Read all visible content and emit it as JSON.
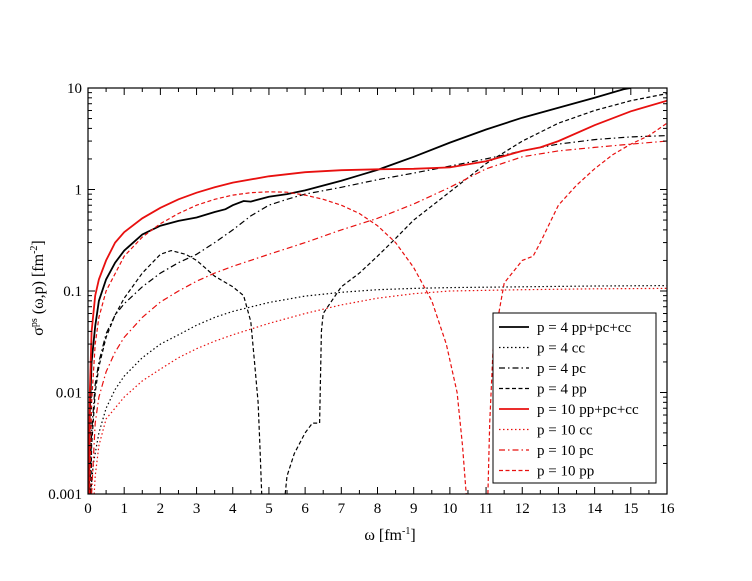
{
  "chart_data": {
    "type": "line",
    "title": "",
    "xlabel": {
      "main": "ω  [fm",
      "sup": "-1",
      "end": "]"
    },
    "ylabel": {
      "main": "σ",
      "sup1": "ps",
      "mid": " (ω,p)  [fm",
      "sup2": "-2",
      "end": "]"
    },
    "xlim": [
      0,
      16
    ],
    "ylim": [
      0.001,
      10
    ],
    "yscale": "log",
    "grid": false,
    "legend_position": "bottom-right",
    "x_ticks": [
      "0",
      "1",
      "2",
      "3",
      "4",
      "5",
      "6",
      "7",
      "8",
      "9",
      "10",
      "11",
      "12",
      "13",
      "14",
      "15",
      "16"
    ],
    "y_ticks": [
      {
        "value": 0.001,
        "label": "0.001"
      },
      {
        "value": 0.01,
        "label": "0.01"
      },
      {
        "value": 0.1,
        "label": "0.1"
      },
      {
        "value": 1,
        "label": "1"
      },
      {
        "value": 10,
        "label": "10"
      }
    ],
    "colors": {
      "black": "#000000",
      "red": "#e8100f"
    },
    "series": [
      {
        "name": "p = 4    pp+pc+cc",
        "color": "#000000",
        "dash": "solid",
        "width": 1.8,
        "points": [
          [
            0.03,
            0.001
          ],
          [
            0.05,
            0.006
          ],
          [
            0.1,
            0.02
          ],
          [
            0.2,
            0.045
          ],
          [
            0.3,
            0.08
          ],
          [
            0.5,
            0.13
          ],
          [
            0.75,
            0.19
          ],
          [
            1,
            0.25
          ],
          [
            1.5,
            0.36
          ],
          [
            2,
            0.44
          ],
          [
            2.5,
            0.49
          ],
          [
            3,
            0.53
          ],
          [
            3.5,
            0.6
          ],
          [
            3.8,
            0.64
          ],
          [
            4,
            0.7
          ],
          [
            4.3,
            0.77
          ],
          [
            4.5,
            0.76
          ],
          [
            5,
            0.85
          ],
          [
            5.5,
            0.9
          ],
          [
            6,
            0.98
          ],
          [
            6.4,
            1.07
          ],
          [
            7,
            1.22
          ],
          [
            7.5,
            1.38
          ],
          [
            8,
            1.56
          ],
          [
            9,
            2.1
          ],
          [
            10,
            2.9
          ],
          [
            11,
            3.9
          ],
          [
            12,
            5.1
          ],
          [
            13,
            6.4
          ],
          [
            14,
            8
          ],
          [
            14.8,
            9.7
          ],
          [
            15,
            10
          ]
        ]
      },
      {
        "name": "p = 4    cc",
        "color": "#000000",
        "dash": "1.5,2.5",
        "width": 1.2,
        "points": [
          [
            0.08,
            0.001
          ],
          [
            0.1,
            0.0013
          ],
          [
            0.15,
            0.002
          ],
          [
            0.3,
            0.004
          ],
          [
            0.5,
            0.007
          ],
          [
            0.75,
            0.0107
          ],
          [
            1,
            0.0145
          ],
          [
            1.5,
            0.022
          ],
          [
            2,
            0.03
          ],
          [
            2.5,
            0.037
          ],
          [
            3,
            0.046
          ],
          [
            3.5,
            0.055
          ],
          [
            4,
            0.063
          ],
          [
            5,
            0.077
          ],
          [
            6,
            0.089
          ],
          [
            7,
            0.097
          ],
          [
            8,
            0.103
          ],
          [
            9,
            0.106
          ],
          [
            10,
            0.108
          ],
          [
            12,
            0.11
          ],
          [
            14,
            0.112
          ],
          [
            16,
            0.113
          ]
        ]
      },
      {
        "name": "p = 4    pc",
        "color": "#000000",
        "dash": "6,3,1.5,3",
        "width": 1.2,
        "points": [
          [
            0.05,
            0.001
          ],
          [
            0.1,
            0.004
          ],
          [
            0.2,
            0.012
          ],
          [
            0.3,
            0.02
          ],
          [
            0.5,
            0.038
          ],
          [
            0.75,
            0.058
          ],
          [
            1,
            0.075
          ],
          [
            1.5,
            0.11
          ],
          [
            2,
            0.15
          ],
          [
            2.5,
            0.19
          ],
          [
            3,
            0.23
          ],
          [
            3.5,
            0.3
          ],
          [
            4,
            0.4
          ],
          [
            4.5,
            0.55
          ],
          [
            5,
            0.7
          ],
          [
            5.5,
            0.8
          ],
          [
            6,
            0.9
          ],
          [
            7,
            1.05
          ],
          [
            8,
            1.25
          ],
          [
            9,
            1.45
          ],
          [
            10,
            1.7
          ],
          [
            11,
            2
          ],
          [
            12,
            2.4
          ],
          [
            13,
            2.8
          ],
          [
            14,
            3.1
          ],
          [
            15,
            3.3
          ],
          [
            16,
            3.4
          ]
        ]
      },
      {
        "name": "p = 4    pp",
        "color": "#000000",
        "dash": "4,2.5",
        "width": 1.2,
        "points": [
          [
            0.08,
            0.001
          ],
          [
            0.1,
            0.003
          ],
          [
            0.2,
            0.01
          ],
          [
            0.3,
            0.018
          ],
          [
            0.5,
            0.035
          ],
          [
            0.75,
            0.058
          ],
          [
            1,
            0.085
          ],
          [
            1.5,
            0.15
          ],
          [
            2,
            0.23
          ],
          [
            2.3,
            0.25
          ],
          [
            2.7,
            0.23
          ],
          [
            3,
            0.2
          ],
          [
            3.5,
            0.14
          ],
          [
            4,
            0.11
          ],
          [
            4.3,
            0.09
          ],
          [
            4.5,
            0.05
          ],
          [
            4.6,
            0.02
          ],
          [
            4.7,
            0.008
          ],
          [
            4.75,
            0.003
          ],
          [
            4.8,
            0.001
          ]
        ]
      },
      {
        "name": "",
        "color": "#000000",
        "dash": "4,2.5",
        "width": 1.2,
        "points": [
          [
            5.45,
            0.001
          ],
          [
            5.5,
            0.0015
          ],
          [
            5.7,
            0.0025
          ],
          [
            6,
            0.004
          ],
          [
            6.2,
            0.005
          ],
          [
            6.4,
            0.005
          ],
          [
            6.45,
            0.04
          ],
          [
            6.5,
            0.06
          ],
          [
            7,
            0.11
          ],
          [
            7.5,
            0.15
          ],
          [
            8,
            0.22
          ],
          [
            8.5,
            0.33
          ],
          [
            9,
            0.5
          ],
          [
            10,
            0.95
          ],
          [
            11,
            1.8
          ],
          [
            12,
            3
          ],
          [
            13,
            4.5
          ],
          [
            14,
            6
          ],
          [
            15,
            7.5
          ],
          [
            16,
            8.8
          ]
        ]
      },
      {
        "name": "p = 10  pp+pc+cc",
        "color": "#e8100f",
        "dash": "solid",
        "width": 1.8,
        "points": [
          [
            0.02,
            0.001
          ],
          [
            0.05,
            0.01
          ],
          [
            0.1,
            0.04
          ],
          [
            0.2,
            0.09
          ],
          [
            0.3,
            0.13
          ],
          [
            0.5,
            0.2
          ],
          [
            0.75,
            0.3
          ],
          [
            1,
            0.38
          ],
          [
            1.5,
            0.52
          ],
          [
            2,
            0.66
          ],
          [
            2.5,
            0.8
          ],
          [
            3,
            0.93
          ],
          [
            3.5,
            1.05
          ],
          [
            4,
            1.17
          ],
          [
            5,
            1.35
          ],
          [
            6,
            1.48
          ],
          [
            7,
            1.55
          ],
          [
            8,
            1.58
          ],
          [
            9,
            1.6
          ],
          [
            10,
            1.65
          ],
          [
            11,
            1.9
          ],
          [
            12,
            2.4
          ],
          [
            12.5,
            2.6
          ],
          [
            13,
            3
          ],
          [
            14,
            4.3
          ],
          [
            15,
            5.9
          ],
          [
            16,
            7.5
          ]
        ]
      },
      {
        "name": "p = 10  cc",
        "color": "#e8100f",
        "dash": "1.5,2.5",
        "width": 1.2,
        "points": [
          [
            0.17,
            0.001
          ],
          [
            0.2,
            0.0015
          ],
          [
            0.3,
            0.003
          ],
          [
            0.5,
            0.0055
          ],
          [
            1,
            0.009
          ],
          [
            1.5,
            0.013
          ],
          [
            2,
            0.017
          ],
          [
            2.5,
            0.022
          ],
          [
            3,
            0.027
          ],
          [
            3.5,
            0.032
          ],
          [
            4,
            0.037
          ],
          [
            5,
            0.048
          ],
          [
            6,
            0.06
          ],
          [
            7,
            0.073
          ],
          [
            8,
            0.085
          ],
          [
            9,
            0.094
          ],
          [
            10,
            0.1
          ],
          [
            12,
            0.103
          ],
          [
            14,
            0.105
          ],
          [
            16,
            0.106
          ]
        ]
      },
      {
        "name": "p = 10  pc",
        "color": "#e8100f",
        "dash": "6,3,1.5,3",
        "width": 1.2,
        "points": [
          [
            0.1,
            0.001
          ],
          [
            0.2,
            0.005
          ],
          [
            0.3,
            0.009
          ],
          [
            0.5,
            0.016
          ],
          [
            0.75,
            0.025
          ],
          [
            1,
            0.035
          ],
          [
            1.5,
            0.055
          ],
          [
            2,
            0.078
          ],
          [
            2.5,
            0.1
          ],
          [
            3,
            0.125
          ],
          [
            3.5,
            0.15
          ],
          [
            4,
            0.175
          ],
          [
            5,
            0.23
          ],
          [
            6,
            0.3
          ],
          [
            7,
            0.4
          ],
          [
            8,
            0.52
          ],
          [
            9,
            0.72
          ],
          [
            10,
            1.05
          ],
          [
            11,
            1.6
          ],
          [
            12,
            2.1
          ],
          [
            13,
            2.4
          ],
          [
            14,
            2.6
          ],
          [
            15,
            2.8
          ],
          [
            16,
            3
          ]
        ]
      },
      {
        "name": "p = 10  pp",
        "color": "#e8100f",
        "dash": "4,2.5",
        "width": 1.2,
        "points": [
          [
            0.05,
            0.001
          ],
          [
            0.1,
            0.008
          ],
          [
            0.2,
            0.03
          ],
          [
            0.3,
            0.055
          ],
          [
            0.5,
            0.1
          ],
          [
            1,
            0.22
          ],
          [
            1.5,
            0.34
          ],
          [
            2,
            0.46
          ],
          [
            2.5,
            0.58
          ],
          [
            3,
            0.7
          ],
          [
            3.5,
            0.8
          ],
          [
            4,
            0.88
          ],
          [
            4.5,
            0.93
          ],
          [
            5,
            0.95
          ],
          [
            5.5,
            0.94
          ],
          [
            6,
            0.88
          ],
          [
            6.5,
            0.8
          ],
          [
            7,
            0.7
          ],
          [
            7.5,
            0.58
          ],
          [
            8,
            0.44
          ],
          [
            8.5,
            0.3
          ],
          [
            9,
            0.17
          ],
          [
            9.5,
            0.08
          ],
          [
            9.9,
            0.03
          ],
          [
            10.2,
            0.01
          ],
          [
            10.35,
            0.003
          ],
          [
            10.45,
            0.001
          ]
        ]
      },
      {
        "name": "",
        "color": "#e8100f",
        "dash": "4,2.5",
        "width": 1.2,
        "points": [
          [
            11.05,
            0.001
          ],
          [
            11.1,
            0.005
          ],
          [
            11.2,
            0.03
          ],
          [
            11.5,
            0.12
          ],
          [
            12,
            0.2
          ],
          [
            12.3,
            0.22
          ],
          [
            12.5,
            0.3
          ],
          [
            13,
            0.7
          ],
          [
            13.5,
            1.1
          ],
          [
            14,
            1.6
          ],
          [
            14.5,
            2.2
          ],
          [
            15,
            2.8
          ],
          [
            15.5,
            3.4
          ],
          [
            16,
            4.5
          ]
        ]
      }
    ]
  }
}
